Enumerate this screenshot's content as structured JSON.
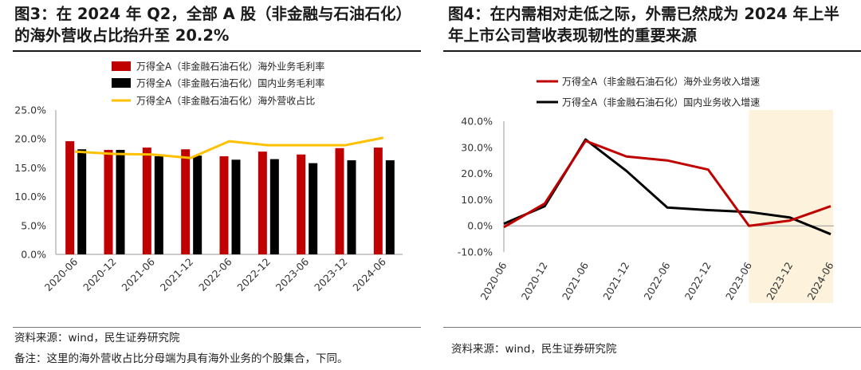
{
  "left": {
    "title_line1": "图3：在 2024 年 Q2，全部 A 股（非金融与石油石化）",
    "title_line2": "的海外营收占比抬升至 20.2%",
    "source": "资料来源：wind，民生证券研究院",
    "note": "备注：这里的海外营收占比分母端为具有海外业务的个股集合，下同。",
    "chart_data": {
      "type": "bar",
      "categories": [
        "2020-06",
        "2020-12",
        "2021-06",
        "2021-12",
        "2022-06",
        "2022-12",
        "2023-06",
        "2023-12",
        "2024-06"
      ],
      "ylim": [
        0,
        25
      ],
      "yticks": [
        "0.0%",
        "5.0%",
        "10.0%",
        "15.0%",
        "20.0%",
        "25.0%"
      ],
      "legend_position": "top",
      "series": [
        {
          "name": "万得全A（非金融石油石化）海外业务毛利率",
          "kind": "bar",
          "color": "#c00000",
          "values": [
            19.6,
            18.1,
            18.5,
            18.2,
            17.0,
            17.8,
            17.3,
            18.4,
            18.5
          ]
        },
        {
          "name": "万得全A（非金融石油石化）国内业务毛利率",
          "kind": "bar",
          "color": "#000000",
          "values": [
            18.2,
            18.1,
            17.0,
            17.1,
            16.4,
            16.5,
            15.8,
            16.3,
            16.3
          ]
        },
        {
          "name": "万得全A（非金融石油石化）海外营收占比",
          "kind": "line",
          "color": "#ffc000",
          "values": [
            17.8,
            17.4,
            17.3,
            16.7,
            19.6,
            18.9,
            18.9,
            18.9,
            20.2
          ]
        }
      ]
    }
  },
  "right": {
    "title_line1": "图4：在内需相对走低之际，外需已然成为 2024 年上半",
    "title_line2": "年上市公司营收表现韧性的重要来源",
    "source": "资料来源：wind，民生证券研究院",
    "chart_data": {
      "type": "line",
      "categories": [
        "2020-06",
        "2020-12",
        "2021-06",
        "2021-12",
        "2022-06",
        "2022-12",
        "2023-06",
        "2023-12",
        "2024-06"
      ],
      "ylim": [
        -10,
        40
      ],
      "yticks": [
        "-10.0%",
        "0.0%",
        "10.0%",
        "20.0%",
        "30.0%",
        "40.0%"
      ],
      "legend_position": "top",
      "highlight_range": [
        "2023-06",
        "2024-06"
      ],
      "highlight_color": "#fdf3dc",
      "series": [
        {
          "name": "万得全A（非金融石油石化）海外业务收入增速",
          "color": "#c00000",
          "values": [
            -0.5,
            8.5,
            32.5,
            26.5,
            25.0,
            21.5,
            0.0,
            2.0,
            7.5
          ]
        },
        {
          "name": "万得全A（非金融石油石化）国内业务收入增速",
          "color": "#000000",
          "values": [
            0.8,
            7.5,
            33.0,
            21.0,
            7.0,
            6.0,
            5.3,
            3.2,
            -3.2
          ]
        }
      ]
    }
  }
}
